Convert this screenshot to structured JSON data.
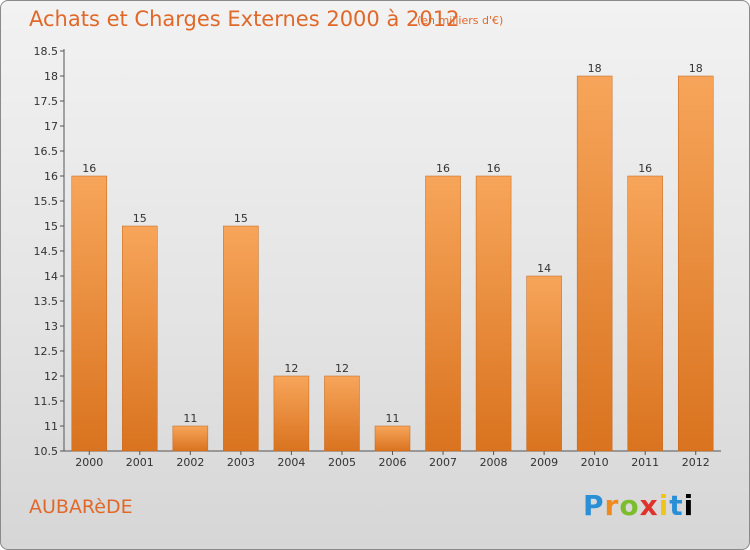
{
  "title": "Achats et Charges Externes 2000 à 2012",
  "subtitle": "(en milliers d'€)",
  "commune": "AUBARèDE",
  "logo_text": "Proxiti",
  "colors": {
    "title": "#e0692a",
    "bar_top": "#f7a55a",
    "bar_bottom": "#d9731f",
    "axis": "#555555"
  },
  "chart_data": {
    "type": "bar",
    "categories": [
      "2000",
      "2001",
      "2002",
      "2003",
      "2004",
      "2005",
      "2006",
      "2007",
      "2008",
      "2009",
      "2010",
      "2011",
      "2012"
    ],
    "values": [
      16,
      15,
      11,
      15,
      12,
      12,
      11,
      16,
      16,
      14,
      18,
      16,
      18
    ],
    "ylim": [
      10.5,
      18.5
    ],
    "yticks": [
      "10.5",
      "11",
      "11.5",
      "12",
      "12.5",
      "13",
      "13.5",
      "14",
      "14.5",
      "15",
      "15.5",
      "16",
      "16.5",
      "17",
      "17.5",
      "18",
      "18.5"
    ],
    "xlabel": "",
    "ylabel": "",
    "grid": false
  }
}
